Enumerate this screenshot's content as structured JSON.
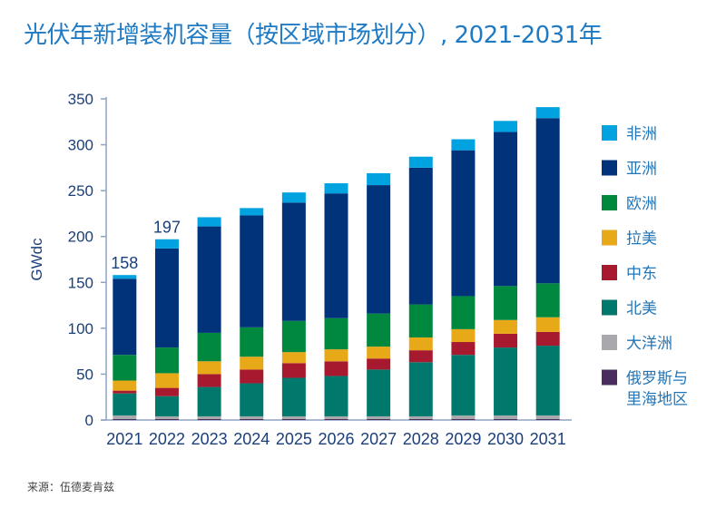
{
  "chart_data": {
    "type": "bar",
    "stacked": true,
    "title": "光伏年新增装机容量（按区域市场划分）, 2021-2031年",
    "ylabel": "GWdc",
    "xlabel": "",
    "ylim": [
      0,
      350
    ],
    "yticks": [
      0,
      50,
      100,
      150,
      200,
      250,
      300,
      350
    ],
    "grid": false,
    "legend_position": "right",
    "categories": [
      "2021",
      "2022",
      "2023",
      "2024",
      "2025",
      "2026",
      "2027",
      "2028",
      "2029",
      "2030",
      "2031"
    ],
    "series": [
      {
        "name": "俄罗斯与里海地区",
        "color": "#4b2c5e",
        "values": [
          1,
          1,
          1,
          1,
          1,
          1,
          1,
          1,
          1,
          1,
          1
        ]
      },
      {
        "name": "大洋洲",
        "color": "#a7a9ac",
        "values": [
          4,
          3,
          3,
          3,
          3,
          3,
          3,
          3,
          4,
          4,
          4
        ]
      },
      {
        "name": "北美",
        "color": "#00786b",
        "values": [
          24,
          22,
          32,
          36,
          42,
          44,
          51,
          59,
          66,
          74,
          76
        ]
      },
      {
        "name": "中东",
        "color": "#a6192e",
        "values": [
          3,
          9,
          14,
          15,
          16,
          16,
          12,
          13,
          14,
          15,
          15
        ]
      },
      {
        "name": "拉美",
        "color": "#e8a919",
        "values": [
          11,
          16,
          14,
          14,
          12,
          13,
          13,
          14,
          14,
          15,
          16
        ]
      },
      {
        "name": "欧洲",
        "color": "#00883e",
        "values": [
          28,
          28,
          31,
          32,
          34,
          34,
          36,
          36,
          36,
          37,
          37
        ]
      },
      {
        "name": "亚洲",
        "color": "#00337a",
        "values": [
          83,
          108,
          116,
          122,
          129,
          136,
          140,
          149,
          159,
          168,
          180
        ]
      },
      {
        "name": "非洲",
        "color": "#00a3e0",
        "values": [
          4,
          10,
          10,
          8,
          11,
          11,
          13,
          12,
          12,
          12,
          12
        ]
      }
    ],
    "data_labels": [
      {
        "category": "2021",
        "text": "158"
      },
      {
        "category": "2022",
        "text": "197"
      }
    ],
    "legend_order": [
      "非洲",
      "亚洲",
      "欧洲",
      "拉美",
      "中东",
      "北美",
      "大洋洲",
      "俄罗斯与里海地区"
    ]
  },
  "source": "来源：伍德麦肯兹"
}
